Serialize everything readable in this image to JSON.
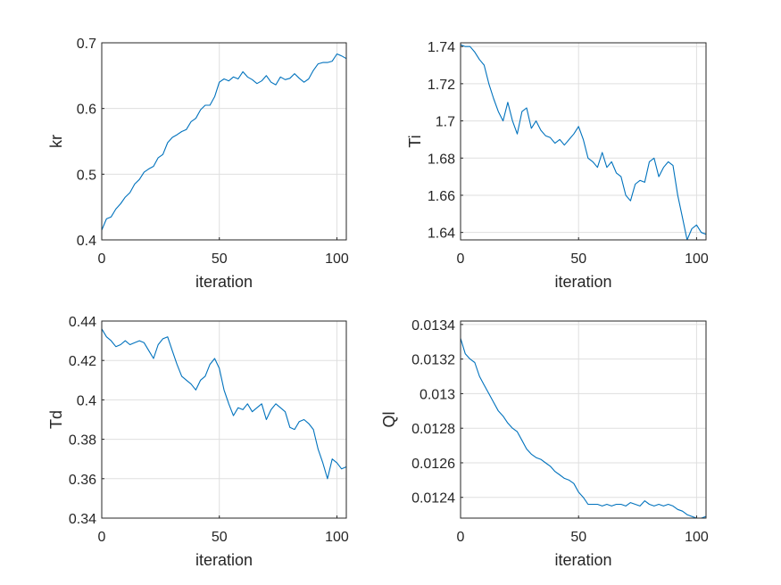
{
  "chart_data": [
    {
      "type": "line",
      "xlabel": "iteration",
      "ylabel": "kr",
      "xlim": [
        0,
        104
      ],
      "ylim": [
        0.4,
        0.7
      ],
      "xticks": [
        0,
        50,
        100
      ],
      "xtick_labels": [
        "0",
        "50",
        "100"
      ],
      "yticks": [
        0.4,
        0.5,
        0.6,
        0.7
      ],
      "ytick_labels": [
        "0.4",
        "0.5",
        "0.6",
        "0.7"
      ],
      "grid": true,
      "color": "#0072BD",
      "series": [
        {
          "x": [
            0,
            2,
            4,
            6,
            8,
            10,
            12,
            14,
            16,
            18,
            20,
            22,
            24,
            26,
            28,
            30,
            32,
            34,
            36,
            38,
            40,
            42,
            44,
            46,
            48,
            50,
            52,
            54,
            56,
            58,
            60,
            62,
            64,
            66,
            68,
            70,
            72,
            74,
            76,
            78,
            80,
            82,
            84,
            86,
            88,
            90,
            92,
            94,
            96,
            98,
            100,
            102,
            104
          ],
          "y": [
            0.415,
            0.432,
            0.435,
            0.447,
            0.455,
            0.465,
            0.472,
            0.485,
            0.492,
            0.503,
            0.508,
            0.512,
            0.525,
            0.53,
            0.548,
            0.556,
            0.56,
            0.565,
            0.568,
            0.58,
            0.585,
            0.598,
            0.605,
            0.605,
            0.618,
            0.64,
            0.645,
            0.642,
            0.648,
            0.645,
            0.656,
            0.648,
            0.644,
            0.638,
            0.642,
            0.65,
            0.64,
            0.636,
            0.648,
            0.644,
            0.646,
            0.653,
            0.646,
            0.64,
            0.645,
            0.658,
            0.668,
            0.67,
            0.67,
            0.672,
            0.683,
            0.68,
            0.676
          ]
        }
      ]
    },
    {
      "type": "line",
      "xlabel": "iteration",
      "ylabel": "Ti",
      "xlim": [
        0,
        104
      ],
      "ylim": [
        1.636,
        1.742
      ],
      "xticks": [
        0,
        50,
        100
      ],
      "xtick_labels": [
        "0",
        "50",
        "100"
      ],
      "yticks": [
        1.64,
        1.66,
        1.68,
        1.7,
        1.72,
        1.74
      ],
      "ytick_labels": [
        "1.64",
        "1.66",
        "1.68",
        "1.7",
        "1.72",
        "1.74"
      ],
      "grid": true,
      "color": "#0072BD",
      "series": [
        {
          "x": [
            0,
            2,
            4,
            6,
            8,
            10,
            12,
            14,
            16,
            18,
            20,
            22,
            24,
            26,
            28,
            30,
            32,
            34,
            36,
            38,
            40,
            42,
            44,
            46,
            48,
            50,
            52,
            54,
            56,
            58,
            60,
            62,
            64,
            66,
            68,
            70,
            72,
            74,
            76,
            78,
            80,
            82,
            84,
            86,
            88,
            90,
            92,
            94,
            96,
            98,
            100,
            102,
            104
          ],
          "y": [
            1.741,
            1.74,
            1.74,
            1.737,
            1.733,
            1.73,
            1.72,
            1.712,
            1.705,
            1.7,
            1.71,
            1.7,
            1.693,
            1.705,
            1.707,
            1.696,
            1.7,
            1.695,
            1.692,
            1.691,
            1.688,
            1.69,
            1.687,
            1.69,
            1.693,
            1.697,
            1.69,
            1.68,
            1.678,
            1.675,
            1.683,
            1.675,
            1.678,
            1.672,
            1.67,
            1.66,
            1.657,
            1.666,
            1.668,
            1.667,
            1.678,
            1.68,
            1.67,
            1.675,
            1.678,
            1.676,
            1.66,
            1.648,
            1.636,
            1.642,
            1.644,
            1.64,
            1.639
          ]
        }
      ]
    },
    {
      "type": "line",
      "xlabel": "iteration",
      "ylabel": "Td",
      "xlim": [
        0,
        104
      ],
      "ylim": [
        0.34,
        0.44
      ],
      "xticks": [
        0,
        50,
        100
      ],
      "xtick_labels": [
        "0",
        "50",
        "100"
      ],
      "yticks": [
        0.34,
        0.36,
        0.38,
        0.4,
        0.42,
        0.44
      ],
      "ytick_labels": [
        "0.34",
        "0.36",
        "0.38",
        "0.4",
        "0.42",
        "0.44"
      ],
      "grid": true,
      "color": "#0072BD",
      "series": [
        {
          "x": [
            0,
            2,
            4,
            6,
            8,
            10,
            12,
            14,
            16,
            18,
            20,
            22,
            24,
            26,
            28,
            30,
            32,
            34,
            36,
            38,
            40,
            42,
            44,
            46,
            48,
            50,
            52,
            54,
            56,
            58,
            60,
            62,
            64,
            66,
            68,
            70,
            72,
            74,
            76,
            78,
            80,
            82,
            84,
            86,
            88,
            90,
            92,
            94,
            96,
            98,
            100,
            102,
            104
          ],
          "y": [
            0.436,
            0.432,
            0.43,
            0.427,
            0.428,
            0.43,
            0.428,
            0.429,
            0.43,
            0.429,
            0.425,
            0.421,
            0.428,
            0.431,
            0.432,
            0.425,
            0.418,
            0.412,
            0.41,
            0.408,
            0.405,
            0.41,
            0.412,
            0.418,
            0.421,
            0.416,
            0.405,
            0.398,
            0.392,
            0.396,
            0.395,
            0.398,
            0.394,
            0.396,
            0.398,
            0.39,
            0.395,
            0.398,
            0.396,
            0.394,
            0.386,
            0.385,
            0.389,
            0.39,
            0.388,
            0.385,
            0.375,
            0.368,
            0.36,
            0.37,
            0.368,
            0.365,
            0.366
          ]
        }
      ]
    },
    {
      "type": "line",
      "xlabel": "iteration",
      "ylabel": "Ql",
      "xlim": [
        0,
        104
      ],
      "ylim": [
        0.01228,
        0.01342
      ],
      "xticks": [
        0,
        50,
        100
      ],
      "xtick_labels": [
        "0",
        "50",
        "100"
      ],
      "yticks": [
        0.0124,
        0.0126,
        0.0128,
        0.013,
        0.0132,
        0.0134
      ],
      "ytick_labels": [
        "0.0124",
        "0.0126",
        "0.0128",
        "0.013",
        "0.0132",
        "0.0134"
      ],
      "grid": true,
      "color": "#0072BD",
      "series": [
        {
          "x": [
            0,
            2,
            4,
            6,
            8,
            10,
            12,
            14,
            16,
            18,
            20,
            22,
            24,
            26,
            28,
            30,
            32,
            34,
            36,
            38,
            40,
            42,
            44,
            46,
            48,
            50,
            52,
            54,
            56,
            58,
            60,
            62,
            64,
            66,
            68,
            70,
            72,
            74,
            76,
            78,
            80,
            82,
            84,
            86,
            88,
            90,
            92,
            94,
            96,
            98,
            100,
            102,
            104
          ],
          "y": [
            0.01332,
            0.01323,
            0.0132,
            0.01318,
            0.0131,
            0.01305,
            0.013,
            0.01295,
            0.0129,
            0.01287,
            0.01283,
            0.0128,
            0.01278,
            0.01273,
            0.01268,
            0.01265,
            0.01263,
            0.01262,
            0.0126,
            0.01258,
            0.01255,
            0.01253,
            0.01251,
            0.0125,
            0.01248,
            0.01243,
            0.0124,
            0.01236,
            0.01236,
            0.01236,
            0.01235,
            0.01236,
            0.01235,
            0.01236,
            0.01236,
            0.01235,
            0.01237,
            0.01236,
            0.01235,
            0.01238,
            0.01236,
            0.01235,
            0.01236,
            0.01235,
            0.01236,
            0.01235,
            0.01233,
            0.01232,
            0.0123,
            0.01229,
            0.01228,
            0.01228,
            0.01229
          ]
        }
      ]
    }
  ]
}
